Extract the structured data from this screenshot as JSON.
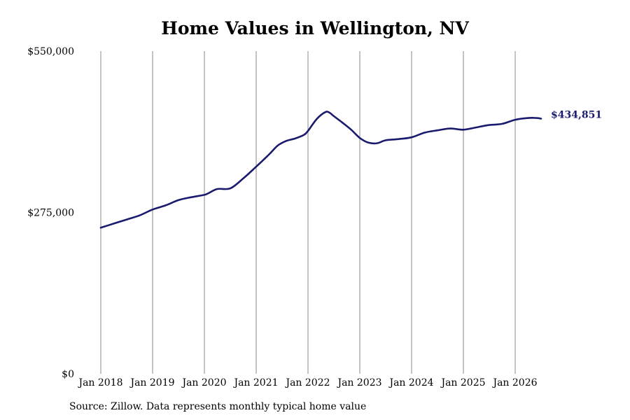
{
  "title": "Home Values in Wellington, NV",
  "source": "Source: Zillow. Data represents monthly typical home value",
  "chart_data": {
    "type": "line",
    "title": "Home Values in Wellington, NV",
    "xlabel": "",
    "ylabel": "",
    "ylim": [
      0,
      550000
    ],
    "y_ticks": [
      {
        "value": 0,
        "label": "$0"
      },
      {
        "value": 275000,
        "label": "$275,000"
      },
      {
        "value": 550000,
        "label": "$550,000"
      }
    ],
    "x_ticks": [
      "Jan 2018",
      "Jan 2019",
      "Jan 2020",
      "Jan 2021",
      "Jan 2022",
      "Jan 2023",
      "Jan 2024",
      "Jan 2025",
      "Jan 2026"
    ],
    "x_range": [
      "2018-01",
      "2026-07"
    ],
    "grid": "vertical lines at x ticks",
    "line_color": "#1a1a6e",
    "end_label": "$434,851",
    "series": [
      {
        "x": [
          "2018-01",
          "2018-04",
          "2018-07",
          "2018-10",
          "2019-01",
          "2019-04",
          "2019-07",
          "2019-10",
          "2020-01",
          "2020-02",
          "2020-04",
          "2020-07",
          "2020-10",
          "2021-01",
          "2021-04",
          "2021-06",
          "2021-08",
          "2021-10",
          "2021-12",
          "2022-01",
          "2022-03",
          "2022-05",
          "2022-06",
          "2022-07",
          "2022-09",
          "2022-11",
          "2023-01",
          "2023-03",
          "2023-05",
          "2023-07",
          "2023-10",
          "2024-01",
          "2024-04",
          "2024-07",
          "2024-10",
          "2025-01",
          "2025-04",
          "2025-07",
          "2025-10",
          "2026-01",
          "2026-04",
          "2026-06",
          "2026-07"
        ],
        "values": [
          249000,
          256000,
          263000,
          270000,
          280000,
          287000,
          296000,
          301000,
          305000,
          308000,
          315000,
          316000,
          333000,
          353000,
          374000,
          389000,
          397000,
          401000,
          407000,
          414000,
          434000,
          446000,
          445000,
          439000,
          428000,
          416000,
          402000,
          394000,
          393000,
          398000,
          400000,
          403000,
          411000,
          415000,
          418000,
          416000,
          420000,
          424000,
          426000,
          433000,
          436000,
          436000,
          434851
        ]
      }
    ]
  }
}
